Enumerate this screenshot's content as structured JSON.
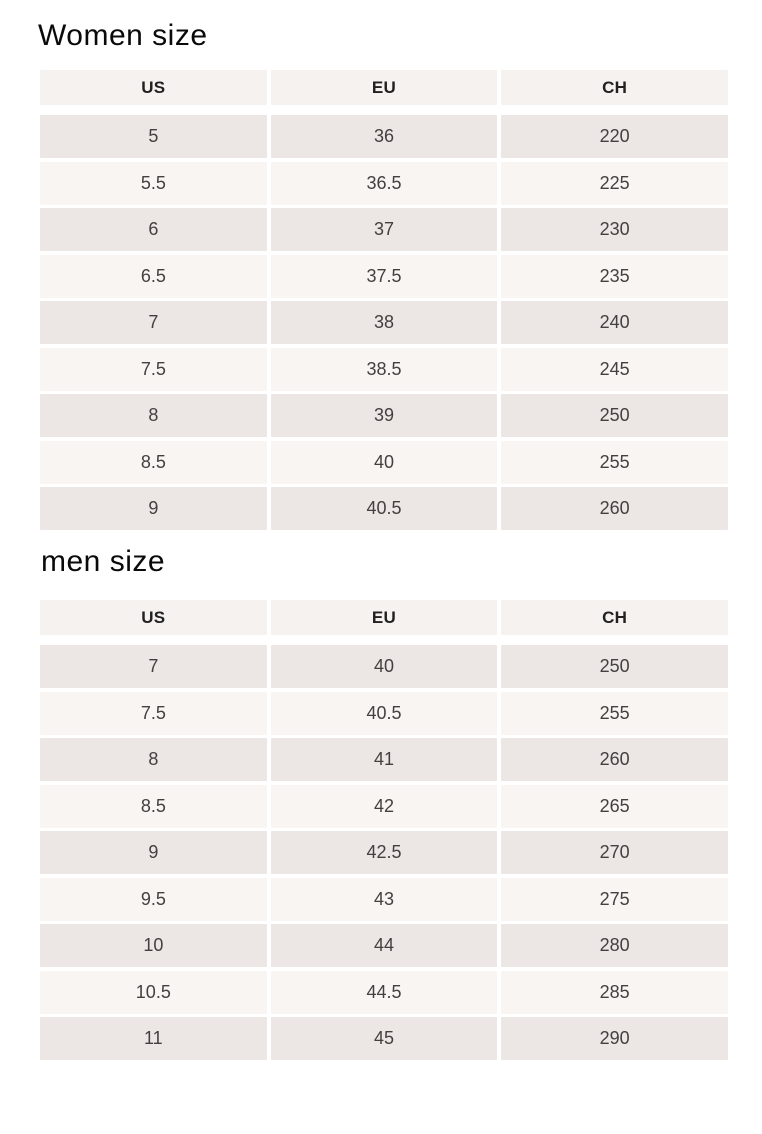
{
  "colors": {
    "page_background": "#ffffff",
    "header_cell_background": "#f5f2f0",
    "row_stripe_dark": "#ece7e5",
    "row_stripe_light": "#f8f5f3",
    "cell_text": "#44403f",
    "title_text": "#0a0a0a"
  },
  "tables": [
    {
      "title": "Women size",
      "columns": [
        "US",
        "EU",
        "CH"
      ],
      "rows": [
        [
          "5",
          "36",
          "220"
        ],
        [
          "5.5",
          "36.5",
          "225"
        ],
        [
          "6",
          "37",
          "230"
        ],
        [
          "6.5",
          "37.5",
          "235"
        ],
        [
          "7",
          "38",
          "240"
        ],
        [
          "7.5",
          "38.5",
          "245"
        ],
        [
          "8",
          "39",
          "250"
        ],
        [
          "8.5",
          "40",
          "255"
        ],
        [
          "9",
          "40.5",
          "260"
        ]
      ]
    },
    {
      "title": "men size",
      "columns": [
        "US",
        "EU",
        "CH"
      ],
      "rows": [
        [
          "7",
          "40",
          "250"
        ],
        [
          "7.5",
          "40.5",
          "255"
        ],
        [
          "8",
          "41",
          "260"
        ],
        [
          "8.5",
          "42",
          "265"
        ],
        [
          "9",
          "42.5",
          "270"
        ],
        [
          "9.5",
          "43",
          "275"
        ],
        [
          "10",
          "44",
          "280"
        ],
        [
          "10.5",
          "44.5",
          "285"
        ],
        [
          "11",
          "45",
          "290"
        ]
      ]
    }
  ]
}
